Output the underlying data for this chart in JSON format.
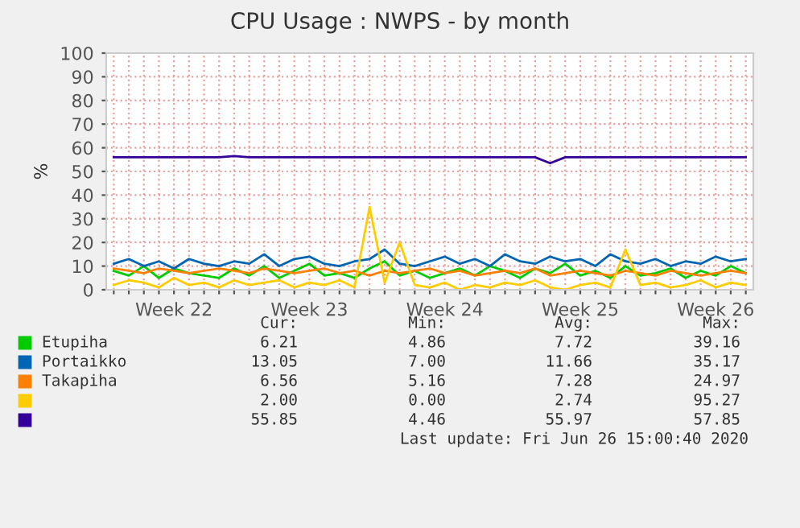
{
  "chart_data": {
    "type": "line",
    "title": "CPU Usage : NWPS - by month",
    "ylabel": "%",
    "ylim": [
      0,
      100
    ],
    "yticks": [
      0,
      10,
      20,
      30,
      40,
      50,
      60,
      70,
      80,
      90,
      100
    ],
    "grid": true,
    "legend": "bottom",
    "line_style": "solid",
    "marker": "none",
    "categories": [
      null,
      null,
      null,
      null,
      "Week 22",
      null,
      null,
      null,
      null,
      null,
      null,
      null,
      null,
      "Week 23",
      null,
      null,
      null,
      null,
      null,
      null,
      null,
      null,
      "Week 24",
      null,
      null,
      null,
      null,
      null,
      null,
      null,
      null,
      "Week 25",
      null,
      null,
      null,
      null,
      null,
      null,
      null,
      null,
      "Week 26",
      null,
      null
    ],
    "series": [
      {
        "name": "Etupiha",
        "color": "#00cc00",
        "values": [
          8,
          6,
          10,
          5,
          9,
          7,
          6,
          5,
          9,
          6,
          10,
          5,
          8,
          11,
          6,
          7,
          5,
          9,
          12,
          6,
          8,
          5,
          7,
          9,
          6,
          10,
          8,
          5,
          9,
          7,
          11,
          6,
          8,
          5,
          10,
          6,
          7,
          9,
          5,
          8,
          6,
          10,
          7
        ]
      },
      {
        "name": "Portaikko",
        "color": "#0066b3",
        "values": [
          11,
          13,
          10,
          12,
          9,
          13,
          11,
          10,
          12,
          11,
          15,
          10,
          13,
          14,
          11,
          10,
          12,
          13,
          17,
          11,
          10,
          12,
          14,
          11,
          13,
          10,
          15,
          12,
          11,
          14,
          12,
          13,
          10,
          15,
          12,
          11,
          13,
          10,
          12,
          11,
          14,
          12,
          13
        ]
      },
      {
        "name": "Takapiha",
        "color": "#ff8000",
        "values": [
          9,
          8,
          7,
          9,
          8,
          7,
          8,
          9,
          8,
          7,
          9,
          8,
          7,
          8,
          9,
          7,
          8,
          6,
          8,
          7,
          8,
          9,
          7,
          8,
          6,
          7,
          8,
          7,
          9,
          6,
          7,
          8,
          7,
          6,
          8,
          7,
          6,
          8,
          7,
          6,
          7,
          8,
          7
        ]
      },
      {
        "color": "#ffcc00",
        "values": [
          2,
          4,
          3,
          1,
          5,
          2,
          3,
          1,
          4,
          2,
          3,
          4,
          1,
          3,
          2,
          4,
          1,
          35,
          3,
          20,
          2,
          1,
          3,
          0,
          2,
          1,
          3,
          2,
          4,
          1,
          0,
          2,
          3,
          1,
          17,
          2,
          3,
          1,
          2,
          4,
          1,
          3,
          2
        ]
      },
      {
        "color": "#330099",
        "values": [
          56,
          56,
          56,
          56,
          56,
          56,
          56,
          56,
          56.5,
          56,
          56,
          56,
          56,
          56,
          56,
          56,
          56,
          56,
          56,
          56,
          56,
          56,
          56,
          56,
          56,
          56,
          56,
          56,
          56,
          53.5,
          56,
          56,
          56,
          56,
          56,
          56,
          56,
          56,
          56,
          56,
          56,
          56,
          56
        ]
      }
    ],
    "annotations": [
      "Cur:",
      "Min:",
      "Avg:",
      "Max:",
      "6.21",
      "4.86",
      "7.72",
      "39.16",
      "13.05",
      "7.00",
      "11.66",
      "35.17",
      "6.56",
      "5.16",
      "7.28",
      "24.97",
      "2.00",
      "0.00",
      "2.74",
      "95.27",
      "55.85",
      "4.46",
      "55.97",
      "57.85",
      "Last update: Fri Jun 26 15:00:40 2020"
    ]
  }
}
